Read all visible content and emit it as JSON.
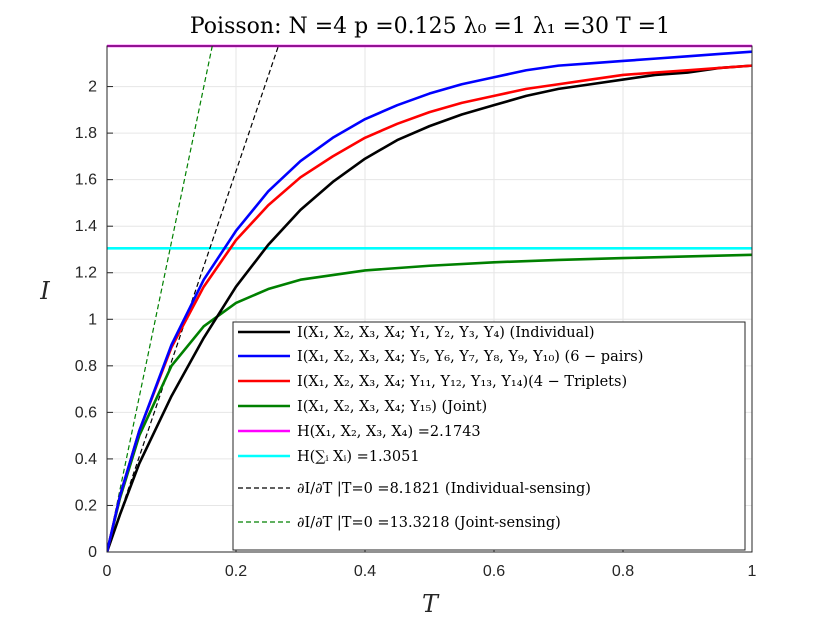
{
  "chart_data": {
    "type": "line",
    "title": "Poisson:      N =4   p =0.125   λ₀ =1   λ₁ =30   T =1",
    "xlabel": "T",
    "ylabel": "I",
    "xlim": [
      0,
      1
    ],
    "ylim": [
      0,
      2.1743
    ],
    "grid": true,
    "legend_position": "bottom-right",
    "xticks": [
      0,
      0.2,
      0.4,
      0.6,
      0.8,
      1
    ],
    "xtick_labels": [
      "0",
      "0.2",
      "0.4",
      "0.6",
      "0.8",
      "1"
    ],
    "yticks": [
      0,
      0.2,
      0.4,
      0.6,
      0.8,
      1,
      1.2,
      1.4,
      1.6,
      1.8,
      2
    ],
    "ytick_labels": [
      "0",
      "0.2",
      "0.4",
      "0.6",
      "0.8",
      "1",
      "1.2",
      "1.4",
      "1.6",
      "1.8",
      "2"
    ],
    "series": [
      {
        "name": "I(X₁, X₂, X₃, X₄; Y₁, Y₂, Y₃, Y₄)   (Individual)",
        "color": "#000000",
        "style": "solid",
        "x": [
          0,
          0.02,
          0.05,
          0.1,
          0.15,
          0.2,
          0.25,
          0.3,
          0.35,
          0.4,
          0.45,
          0.5,
          0.55,
          0.6,
          0.65,
          0.7,
          0.75,
          0.8,
          0.85,
          0.9,
          0.95,
          1.0
        ],
        "y": [
          0,
          0.16,
          0.38,
          0.67,
          0.92,
          1.14,
          1.32,
          1.47,
          1.59,
          1.69,
          1.77,
          1.83,
          1.88,
          1.92,
          1.96,
          1.99,
          2.01,
          2.03,
          2.05,
          2.06,
          2.08,
          2.09
        ]
      },
      {
        "name": "I(X₁, X₂, X₃, X₄; Y₅, Y₆, Y₇, Y₈, Y₉, Y₁₀)   (6 − pairs)",
        "color": "#0000ff",
        "style": "solid",
        "x": [
          0,
          0.02,
          0.05,
          0.1,
          0.15,
          0.2,
          0.25,
          0.3,
          0.35,
          0.4,
          0.45,
          0.5,
          0.55,
          0.6,
          0.65,
          0.7,
          0.75,
          0.8,
          0.85,
          0.9,
          0.95,
          1.0
        ],
        "y": [
          0,
          0.24,
          0.52,
          0.89,
          1.17,
          1.38,
          1.55,
          1.68,
          1.78,
          1.86,
          1.92,
          1.97,
          2.01,
          2.04,
          2.07,
          2.09,
          2.1,
          2.11,
          2.12,
          2.13,
          2.14,
          2.15
        ]
      },
      {
        "name": "I(X₁, X₂, X₃, X₄; Y₁₁, Y₁₂, Y₁₃, Y₁₄)(4 − Triplets)",
        "color": "#ff0000",
        "style": "solid",
        "x": [
          0,
          0.02,
          0.05,
          0.1,
          0.15,
          0.2,
          0.25,
          0.3,
          0.35,
          0.4,
          0.45,
          0.5,
          0.55,
          0.6,
          0.65,
          0.7,
          0.75,
          0.8,
          0.85,
          0.9,
          0.95,
          1.0
        ],
        "y": [
          0,
          0.24,
          0.52,
          0.88,
          1.14,
          1.34,
          1.49,
          1.61,
          1.7,
          1.78,
          1.84,
          1.89,
          1.93,
          1.96,
          1.99,
          2.01,
          2.03,
          2.05,
          2.06,
          2.07,
          2.08,
          2.09
        ]
      },
      {
        "name": "I(X₁, X₂, X₃, X₄; Y₁₅)   (Joint)",
        "color": "#008000",
        "style": "solid",
        "x": [
          0,
          0.02,
          0.05,
          0.1,
          0.15,
          0.2,
          0.25,
          0.3,
          0.35,
          0.4,
          0.5,
          0.6,
          0.7,
          0.8,
          0.9,
          1.0
        ],
        "y": [
          0,
          0.23,
          0.5,
          0.8,
          0.97,
          1.07,
          1.13,
          1.17,
          1.19,
          1.21,
          1.23,
          1.245,
          1.255,
          1.263,
          1.27,
          1.277
        ]
      },
      {
        "name": "H(X₁, X₂, X₃, X₄) =2.1743",
        "color": "#ff00ff",
        "style": "solid",
        "x": [
          0,
          1
        ],
        "y": [
          2.1743,
          2.1743
        ]
      },
      {
        "name": "H(∑ᵢ Xᵢ) =1.3051",
        "color": "#00ffff",
        "style": "solid",
        "x": [
          0,
          1
        ],
        "y": [
          1.3051,
          1.3051
        ]
      },
      {
        "name": "∂I/∂T |T=0 =8.1821 (Individual-sensing)",
        "color": "#000000",
        "style": "dashed",
        "x": [
          0,
          0.2657
        ],
        "y": [
          0,
          2.1743
        ]
      },
      {
        "name": "∂I/∂T |T=0 =13.3218 (Joint-sensing)",
        "color": "#008000",
        "style": "dashed",
        "x": [
          0,
          0.1632
        ],
        "y": [
          0,
          2.1743
        ]
      }
    ]
  }
}
